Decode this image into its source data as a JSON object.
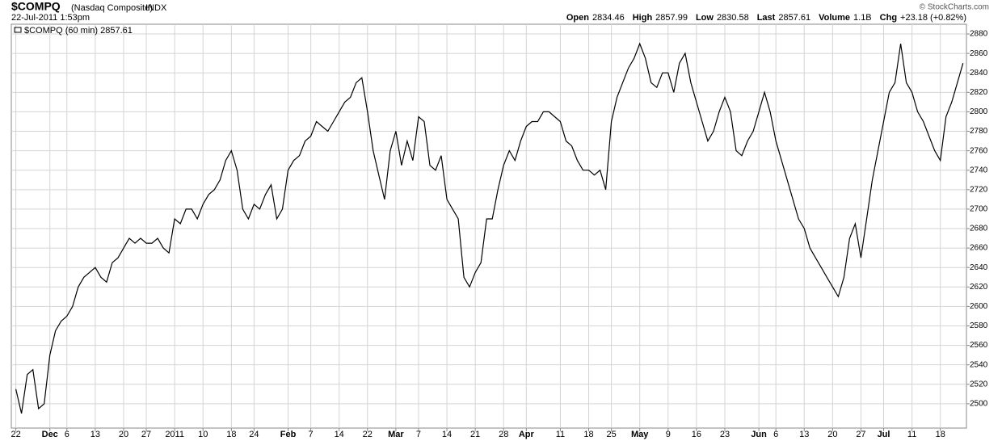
{
  "header": {
    "symbol": "$COMPQ",
    "name": "(Nasdaq Composite)",
    "exchange": "INDX",
    "date": "22-Jul-2011 1:53pm",
    "stats": [
      {
        "label": "Open",
        "value": "2834.46"
      },
      {
        "label": "High",
        "value": "2857.99"
      },
      {
        "label": "Low",
        "value": "2830.58"
      },
      {
        "label": "Last",
        "value": "2857.61"
      },
      {
        "label": "Volume",
        "value": "1.1B"
      },
      {
        "label": "Chg",
        "value": "+23.18 (+0.82%)"
      }
    ],
    "copyright": "© StockCharts.com"
  },
  "chart_data": {
    "type": "line",
    "x": [
      0,
      1,
      2,
      3,
      4,
      5,
      6,
      7,
      8,
      9,
      10,
      11,
      12,
      13,
      14,
      15,
      16,
      17,
      18,
      19,
      20,
      21,
      22,
      23,
      24,
      25,
      26,
      27,
      28,
      29,
      30,
      31,
      32,
      33,
      34,
      35,
      36,
      37,
      38,
      39,
      40,
      41,
      42,
      43,
      44,
      45,
      46,
      47,
      48,
      49,
      50,
      51,
      52,
      53,
      54,
      55,
      56,
      57,
      58,
      59,
      60,
      61,
      62,
      63,
      64,
      65,
      66,
      67,
      68,
      69,
      70,
      71,
      72,
      73,
      74,
      75,
      76,
      77,
      78,
      79,
      80,
      81,
      82,
      83,
      84,
      85,
      86,
      87,
      88,
      89,
      90,
      91,
      92,
      93,
      94,
      95,
      96,
      97,
      98,
      99,
      100,
      101,
      102,
      103,
      104,
      105,
      106,
      107,
      108,
      109,
      110,
      111,
      112,
      113,
      114,
      115,
      116,
      117,
      118,
      119,
      120,
      121,
      122,
      123,
      124,
      125,
      126,
      127,
      128,
      129,
      130,
      131,
      132,
      133,
      134,
      135,
      136,
      137,
      138,
      139,
      140,
      141,
      142,
      143,
      144,
      145,
      146,
      147,
      148,
      149,
      150,
      151,
      152,
      153,
      154,
      155,
      156,
      157,
      158,
      159,
      160,
      161,
      162,
      163,
      164,
      165,
      166,
      167
    ],
    "series": [
      {
        "name": "$COMPQ (60 min) 2857.61",
        "color": "#000000",
        "values": [
          2515,
          2490,
          2530,
          2535,
          2495,
          2500,
          2550,
          2575,
          2585,
          2590,
          2600,
          2620,
          2630,
          2635,
          2640,
          2630,
          2625,
          2645,
          2650,
          2660,
          2670,
          2665,
          2670,
          2665,
          2665,
          2670,
          2660,
          2655,
          2690,
          2685,
          2700,
          2700,
          2690,
          2705,
          2715,
          2720,
          2730,
          2750,
          2760,
          2740,
          2700,
          2690,
          2705,
          2700,
          2715,
          2725,
          2690,
          2700,
          2740,
          2750,
          2755,
          2770,
          2775,
          2790,
          2785,
          2780,
          2790,
          2800,
          2810,
          2815,
          2830,
          2835,
          2800,
          2760,
          2735,
          2710,
          2760,
          2780,
          2745,
          2770,
          2750,
          2795,
          2790,
          2745,
          2740,
          2755,
          2710,
          2700,
          2690,
          2630,
          2620,
          2635,
          2645,
          2690,
          2690,
          2720,
          2745,
          2760,
          2750,
          2770,
          2785,
          2790,
          2790,
          2800,
          2800,
          2795,
          2790,
          2770,
          2765,
          2750,
          2740,
          2740,
          2735,
          2740,
          2720,
          2790,
          2815,
          2830,
          2845,
          2855,
          2870,
          2855,
          2830,
          2825,
          2840,
          2840,
          2820,
          2850,
          2860,
          2830,
          2810,
          2790,
          2770,
          2780,
          2800,
          2815,
          2800,
          2760,
          2755,
          2770,
          2780,
          2800,
          2820,
          2800,
          2770,
          2750,
          2730,
          2710,
          2690,
          2680,
          2660,
          2650,
          2640,
          2630,
          2620,
          2610,
          2630,
          2670,
          2685,
          2650,
          2690,
          2730,
          2760,
          2790,
          2820,
          2830,
          2870,
          2830,
          2820,
          2800,
          2790,
          2775,
          2760,
          2750,
          2795,
          2810,
          2830,
          2850
        ]
      }
    ],
    "xlim": [
      -0.8,
      167.6
    ],
    "ylim": [
      2475,
      2890
    ],
    "xticks": [
      {
        "value": 0,
        "label": "22"
      },
      {
        "value": 6,
        "label": "Dec"
      },
      {
        "value": 9,
        "label": "6"
      },
      {
        "value": 14,
        "label": "13"
      },
      {
        "value": 19,
        "label": "20"
      },
      {
        "value": 23,
        "label": "27"
      },
      {
        "value": 28,
        "label": "2011"
      },
      {
        "value": 33,
        "label": "10"
      },
      {
        "value": 38,
        "label": "18"
      },
      {
        "value": 42,
        "label": "24"
      },
      {
        "value": 48,
        "label": "Feb"
      },
      {
        "value": 52,
        "label": "7"
      },
      {
        "value": 57,
        "label": "14"
      },
      {
        "value": 62,
        "label": "22"
      },
      {
        "value": 67,
        "label": "Mar"
      },
      {
        "value": 71,
        "label": "7"
      },
      {
        "value": 76,
        "label": "14"
      },
      {
        "value": 81,
        "label": "21"
      },
      {
        "value": 86,
        "label": "28"
      },
      {
        "value": 90,
        "label": "Apr"
      },
      {
        "value": 96,
        "label": "11"
      },
      {
        "value": 101,
        "label": "18"
      },
      {
        "value": 105,
        "label": "25"
      },
      {
        "value": 110,
        "label": "May"
      },
      {
        "value": 115,
        "label": "9"
      },
      {
        "value": 120,
        "label": "16"
      },
      {
        "value": 125,
        "label": "23"
      },
      {
        "value": 131,
        "label": "Jun"
      },
      {
        "value": 134,
        "label": "6"
      },
      {
        "value": 139,
        "label": "13"
      },
      {
        "value": 144,
        "label": "20"
      },
      {
        "value": 149,
        "label": "27"
      },
      {
        "value": 153,
        "label": "Jul"
      },
      {
        "value": 158,
        "label": "11"
      },
      {
        "value": 163,
        "label": "18"
      }
    ],
    "yticks": [
      2500,
      2520,
      2540,
      2560,
      2580,
      2600,
      2620,
      2640,
      2660,
      2680,
      2700,
      2720,
      2740,
      2760,
      2780,
      2800,
      2820,
      2840,
      2860,
      2880
    ],
    "grid": true
  }
}
